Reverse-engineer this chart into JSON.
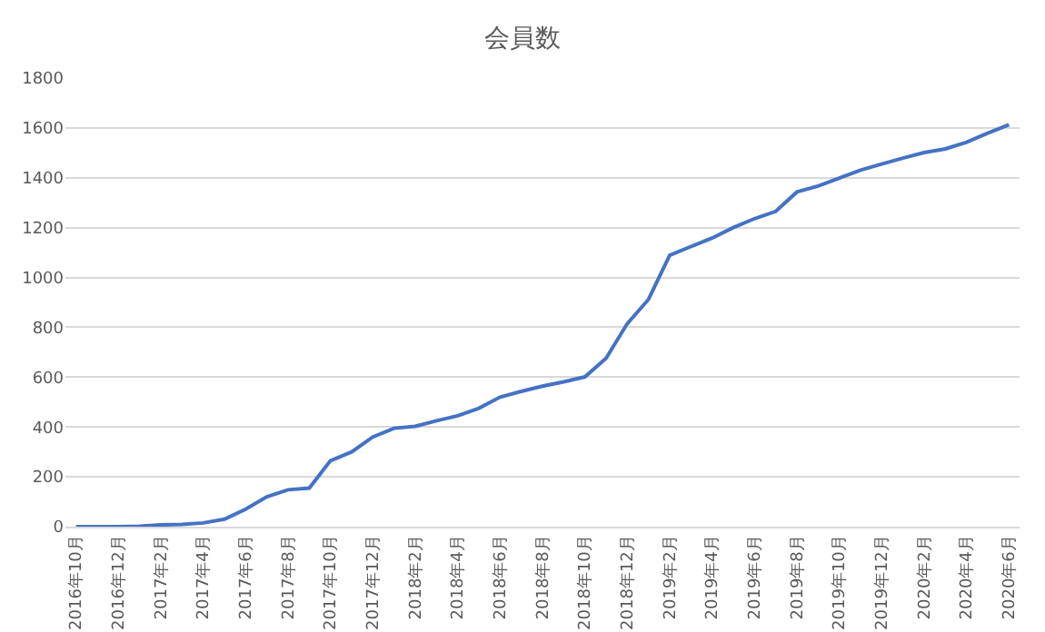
{
  "chart_data": {
    "type": "line",
    "title": "会員数",
    "categories": [
      "2016年10月",
      null,
      "2016年12月",
      null,
      "2017年2月",
      null,
      "2017年4月",
      null,
      "2017年6月",
      null,
      "2017年8月",
      null,
      "2017年10月",
      null,
      "2017年12月",
      null,
      "2018年2月",
      null,
      "2018年4月",
      null,
      "2018年6月",
      null,
      "2018年8月",
      null,
      "2018年10月",
      null,
      "2018年12月",
      null,
      "2019年2月",
      null,
      "2019年4月",
      null,
      "2019年6月",
      null,
      "2019年8月",
      null,
      "2019年10月",
      null,
      "2019年12月",
      null,
      "2020年2月",
      null,
      "2020年4月",
      null,
      "2020年6月"
    ],
    "series": [
      {
        "color": "#4472c4",
        "values": [
          0,
          0,
          0,
          2,
          7,
          9,
          15,
          30,
          70,
          120,
          148,
          155,
          265,
          300,
          360,
          395,
          403,
          425,
          445,
          475,
          520,
          543,
          564,
          581,
          601,
          676,
          815,
          912,
          1089,
          1124,
          1158,
          1200,
          1236,
          1265,
          1343,
          1367,
          1399,
          1431,
          1455,
          1479,
          1501,
          1516,
          1543,
          1579,
          1613
        ]
      }
    ],
    "ylim": [
      0,
      1800
    ],
    "yticks": [
      0,
      200,
      400,
      600,
      800,
      1000,
      1200,
      1400,
      1600,
      1800
    ],
    "grid": "y",
    "marker": "none",
    "line_style": "solid"
  }
}
